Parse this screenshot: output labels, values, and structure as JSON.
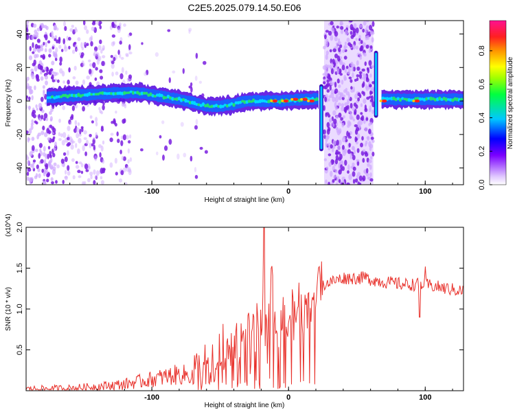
{
  "title": "C2E5.2025.079.14.50.E06",
  "colors": {
    "snr_line": "#e8302a",
    "scatter_dots": "#7a2bd8",
    "ridge_core": "#1fd24a"
  },
  "chart_data": [
    {
      "type": "heatmap",
      "title": "C2E5.2025.079.14.50.E06",
      "xlabel": "Height of straight line (km)",
      "ylabel": "Frequency (Hz)",
      "xlim": [
        -192,
        128
      ],
      "ylim": [
        -50,
        48
      ],
      "xticks": [
        -100,
        0,
        100
      ],
      "yticks": [
        -40,
        -20,
        0,
        20,
        40
      ],
      "colorbar": {
        "label": "Normalized spectral amplitude",
        "range": [
          0,
          1
        ],
        "ticks": [
          "0.0",
          "0.2",
          "0.4",
          "0.6",
          "0.8"
        ],
        "colormap": [
          "#ffffff",
          "#d8b8ff",
          "#7a00ff",
          "#0000ff",
          "#00c8ff",
          "#00ff80",
          "#a0ff00",
          "#ffff00",
          "#ffa000",
          "#ff2020",
          "#ff1090"
        ]
      },
      "ridge_center": [
        {
          "x": -177,
          "y": 2
        },
        {
          "x": -160,
          "y": 3
        },
        {
          "x": -140,
          "y": 4
        },
        {
          "x": -125,
          "y": 5
        },
        {
          "x": -110,
          "y": 5
        },
        {
          "x": -95,
          "y": 3
        },
        {
          "x": -80,
          "y": 1
        },
        {
          "x": -70,
          "y": -1
        },
        {
          "x": -60,
          "y": -3
        },
        {
          "x": -50,
          "y": -3
        },
        {
          "x": -40,
          "y": -2
        },
        {
          "x": -30,
          "y": 0
        },
        {
          "x": -20,
          "y": 0
        },
        {
          "x": -5,
          "y": 0
        },
        {
          "x": 10,
          "y": 1
        },
        {
          "x": 22,
          "y": 1
        }
      ],
      "ridge_center_2": [
        {
          "x": 68,
          "y": 1
        },
        {
          "x": 90,
          "y": 1
        },
        {
          "x": 110,
          "y": 1
        },
        {
          "x": 128,
          "y": 1
        }
      ],
      "noise_bands": [
        {
          "x0": 26,
          "x1": 62,
          "label": ""
        }
      ],
      "hot_spots": [
        {
          "x": -10,
          "y": 0
        },
        {
          "x": -2,
          "y": 0
        },
        {
          "x": 5,
          "y": 1
        },
        {
          "x": 12,
          "y": 1
        },
        {
          "x": 17,
          "y": 0
        },
        {
          "x": 70,
          "y": 0
        },
        {
          "x": 94,
          "y": 0
        }
      ],
      "spikes": [
        {
          "x": 24,
          "ymin": -30,
          "ymax": 10
        },
        {
          "x": 64,
          "ymin": -10,
          "ymax": 30
        }
      ]
    },
    {
      "type": "line",
      "xlabel": "Height of straight line (km)",
      "ylabel": "SNR (10 * v/v)",
      "y_scale_note": "(x10^4)",
      "xlim": [
        -192,
        128
      ],
      "ylim": [
        0,
        2.0
      ],
      "xticks": [
        -100,
        0,
        100
      ],
      "yticks": [
        0.5,
        1.0,
        1.5,
        2.0
      ],
      "series": [
        {
          "color": "#e8302a",
          "trend": [
            {
              "x": -192,
              "y": 0.02
            },
            {
              "x": -160,
              "y": 0.03
            },
            {
              "x": -140,
              "y": 0.05
            },
            {
              "x": -120,
              "y": 0.08
            },
            {
              "x": -100,
              "y": 0.14
            },
            {
              "x": -80,
              "y": 0.2
            },
            {
              "x": -65,
              "y": 0.18
            },
            {
              "x": -55,
              "y": 0.25
            },
            {
              "x": -45,
              "y": 0.4
            },
            {
              "x": -35,
              "y": 0.55
            },
            {
              "x": -25,
              "y": 0.7
            },
            {
              "x": -15,
              "y": 0.8
            },
            {
              "x": -5,
              "y": 0.9
            },
            {
              "x": 5,
              "y": 0.95
            },
            {
              "x": 15,
              "y": 1.1
            },
            {
              "x": 25,
              "y": 1.3
            },
            {
              "x": 40,
              "y": 1.38
            },
            {
              "x": 55,
              "y": 1.38
            },
            {
              "x": 70,
              "y": 1.33
            },
            {
              "x": 85,
              "y": 1.3
            },
            {
              "x": 100,
              "y": 1.3
            },
            {
              "x": 115,
              "y": 1.25
            },
            {
              "x": 128,
              "y": 1.22
            }
          ],
          "peaks": [
            {
              "x": -18,
              "y": 2.0
            },
            {
              "x": 96,
              "y": 0.9
            },
            {
              "x": 56,
              "y": 1.45
            },
            {
              "x": 100,
              "y": 1.52
            }
          ]
        }
      ]
    }
  ]
}
